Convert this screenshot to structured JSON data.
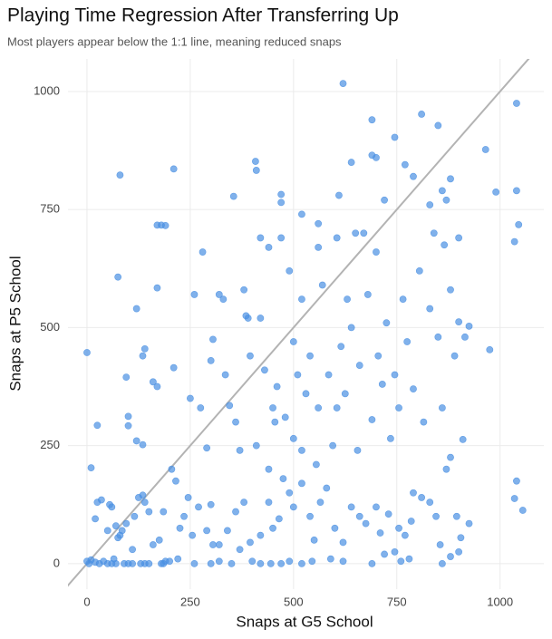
{
  "chart_data": {
    "type": "scatter",
    "title": "Playing Time Regression After Transferring Up",
    "subtitle": "Most players appear below the 1:1 line, meaning reduced snaps",
    "x_label": "Snaps at G5 School",
    "y_label": "Snaps at P5 School",
    "xlim": [
      -46,
      1106
    ],
    "ylim": [
      -54,
      1069
    ],
    "xticks": [
      0,
      250,
      500,
      750,
      1000
    ],
    "yticks": [
      0,
      250,
      500,
      750,
      1000
    ],
    "grid": true,
    "identity_line": true,
    "series": [
      {
        "color": "#4a90e2",
        "x": [
          0,
          10,
          25,
          80,
          75,
          210,
          170,
          180,
          190,
          120,
          170,
          140,
          135,
          95,
          100,
          100,
          120,
          135,
          160,
          170,
          210,
          280,
          355,
          408,
          410,
          470,
          470,
          620,
          690,
          700,
          745,
          810,
          850,
          1040,
          965,
          990,
          1040,
          1045,
          1035,
          975,
          925,
          900,
          915,
          1040,
          1035,
          1055,
          925,
          910,
          880,
          905,
          0,
          5,
          10,
          20,
          30,
          40,
          50,
          60,
          70,
          65,
          80,
          90,
          100,
          110,
          130,
          140,
          150,
          180,
          185,
          190,
          220,
          260,
          300,
          320,
          350,
          400,
          420,
          445,
          470,
          490,
          520,
          545,
          590,
          620,
          690,
          720,
          760,
          780,
          860,
          900,
          20,
          25,
          35,
          50,
          55,
          60,
          70,
          75,
          85,
          95,
          110,
          115,
          125,
          135,
          140,
          150,
          160,
          175,
          200,
          225,
          235,
          245,
          255,
          270,
          290,
          300,
          305,
          320,
          340,
          360,
          370,
          380,
          395,
          420,
          440,
          450,
          465,
          490,
          500,
          520,
          540,
          550,
          565,
          580,
          600,
          620,
          640,
          660,
          675,
          700,
          710,
          730,
          745,
          755,
          770,
          785,
          790,
          810,
          830,
          845,
          855,
          870,
          880,
          895,
          290,
          300,
          305,
          320,
          335,
          345,
          360,
          370,
          385,
          390,
          395,
          410,
          420,
          430,
          440,
          455,
          460,
          475,
          480,
          490,
          500,
          510,
          520,
          530,
          540,
          555,
          560,
          570,
          585,
          595,
          605,
          615,
          625,
          630,
          640,
          655,
          660,
          670,
          680,
          690,
          700,
          705,
          715,
          725,
          735,
          745,
          755,
          765,
          775,
          790,
          805,
          815,
          830,
          840,
          850,
          860,
          870,
          880,
          890,
          900,
          520,
          560,
          605,
          640,
          690,
          720,
          770,
          790,
          830,
          860,
          865,
          880,
          610,
          650,
          560,
          470,
          440,
          420,
          380,
          330,
          250,
          260,
          275,
          215,
          205,
          185,
          520,
          450,
          500
        ],
        "values": [
          447,
          203,
          293,
          823,
          607,
          836,
          717,
          717,
          716,
          540,
          584,
          455,
          440,
          395,
          312,
          292,
          260,
          252,
          385,
          375,
          415,
          660,
          778,
          852,
          833,
          782,
          765,
          1017,
          940,
          860,
          903,
          952,
          928,
          975,
          877,
          787,
          790,
          718,
          682,
          453,
          503,
          512,
          480,
          175,
          138,
          113,
          85,
          263,
          225,
          55,
          5,
          0,
          8,
          3,
          0,
          5,
          0,
          0,
          0,
          10,
          60,
          0,
          0,
          0,
          0,
          0,
          0,
          0,
          0,
          5,
          10,
          0,
          0,
          5,
          0,
          5,
          0,
          0,
          0,
          5,
          0,
          5,
          10,
          5,
          0,
          20,
          5,
          10,
          0,
          25,
          95,
          130,
          135,
          70,
          125,
          120,
          80,
          55,
          70,
          85,
          30,
          100,
          140,
          145,
          130,
          110,
          40,
          50,
          5,
          75,
          100,
          140,
          60,
          120,
          70,
          125,
          40,
          40,
          70,
          110,
          30,
          130,
          45,
          60,
          130,
          75,
          95,
          150,
          120,
          170,
          100,
          50,
          130,
          160,
          75,
          45,
          120,
          100,
          85,
          120,
          65,
          105,
          25,
          75,
          60,
          90,
          150,
          140,
          130,
          100,
          40,
          200,
          15,
          100,
          245,
          430,
          475,
          570,
          400,
          335,
          300,
          240,
          525,
          520,
          440,
          250,
          520,
          410,
          200,
          300,
          375,
          180,
          310,
          620,
          470,
          400,
          560,
          360,
          440,
          210,
          330,
          590,
          400,
          250,
          330,
          460,
          360,
          560,
          500,
          240,
          420,
          700,
          570,
          305,
          660,
          440,
          380,
          510,
          265,
          400,
          330,
          560,
          470,
          370,
          620,
          300,
          540,
          700,
          480,
          330,
          770,
          580,
          440,
          690,
          740,
          670,
          690,
          850,
          865,
          770,
          845,
          820,
          760,
          790,
          675,
          815,
          780,
          700,
          720,
          690,
          670,
          690,
          580,
          560,
          350,
          570,
          330,
          175,
          200,
          110,
          240,
          330,
          265
        ]
      }
    ]
  }
}
